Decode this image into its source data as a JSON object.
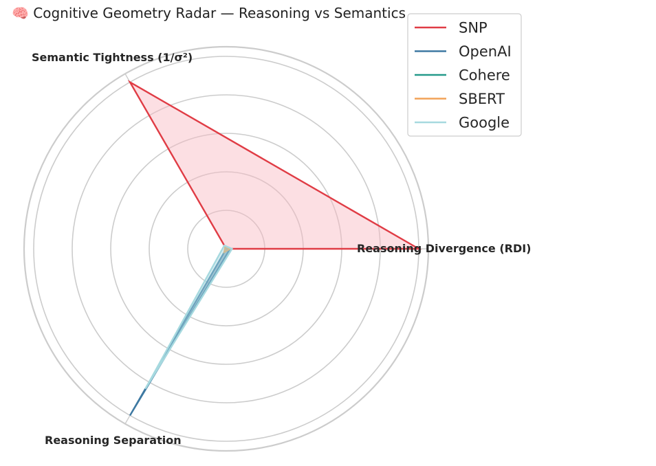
{
  "chart_data": {
    "type": "radar",
    "title": "🧠 Cognitive Geometry Radar — Reasoning vs Semantics",
    "axes": [
      "Reasoning Divergence (RDI)",
      "Semantic Tightness (1/σ²)",
      "Reasoning Separation"
    ],
    "rlim": [
      0,
      1
    ],
    "grid": true,
    "legend_position": "top-right",
    "series": [
      {
        "name": "SNP",
        "values": [
          1.0,
          1.0,
          0.0
        ],
        "color": "#e03c45",
        "fill": "#f8b9c2"
      },
      {
        "name": "OpenAI",
        "values": [
          0.02,
          0.0,
          1.0
        ],
        "color": "#3e79a2",
        "fill": "#2f5f86"
      },
      {
        "name": "Cohere",
        "values": [
          0.02,
          0.01,
          0.02
        ],
        "color": "#24998a",
        "fill": "#7fcfc5"
      },
      {
        "name": "SBERT",
        "values": [
          0.02,
          0.01,
          0.02
        ],
        "color": "#f2a257",
        "fill": "#f2c08f"
      },
      {
        "name": "Google",
        "values": [
          0.03,
          0.02,
          0.84
        ],
        "color": "#a6d9df",
        "fill": "#a6d9df"
      }
    ]
  }
}
